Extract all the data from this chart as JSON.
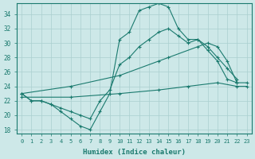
{
  "xlabel": "Humidex (Indice chaleur)",
  "xlim": [
    -0.5,
    23.5
  ],
  "ylim": [
    17.5,
    35.5
  ],
  "xticks": [
    0,
    1,
    2,
    3,
    4,
    5,
    6,
    7,
    8,
    9,
    10,
    11,
    12,
    13,
    14,
    15,
    16,
    17,
    18,
    19,
    20,
    21,
    22,
    23
  ],
  "yticks": [
    18,
    20,
    22,
    24,
    26,
    28,
    30,
    32,
    34
  ],
  "bg_color": "#cde8e8",
  "line_color": "#1a7a6e",
  "grid_color": "#aacfcf",
  "series": [
    {
      "x": [
        0,
        1,
        2,
        3,
        4,
        5,
        6,
        7,
        8,
        9,
        10,
        11,
        12,
        13,
        14,
        15,
        16,
        17,
        18,
        19,
        20,
        21,
        22
      ],
      "y": [
        23.0,
        22.0,
        22.0,
        21.5,
        20.5,
        19.5,
        18.5,
        18.0,
        20.5,
        23.0,
        30.5,
        31.5,
        34.5,
        35.0,
        35.5,
        35.0,
        32.0,
        30.5,
        30.5,
        29.0,
        27.5,
        25.0,
        24.5
      ]
    },
    {
      "x": [
        0,
        1,
        2,
        3,
        4,
        5,
        6,
        7,
        8,
        9,
        10,
        11,
        12,
        13,
        14,
        15,
        16,
        17,
        18,
        19,
        20,
        21,
        22
      ],
      "y": [
        23.0,
        22.0,
        22.0,
        21.5,
        21.0,
        20.5,
        20.0,
        19.5,
        22.0,
        23.5,
        27.0,
        28.0,
        29.5,
        30.5,
        31.5,
        32.0,
        31.0,
        30.0,
        30.5,
        29.5,
        28.0,
        26.5,
        25.0
      ]
    },
    {
      "x": [
        0,
        5,
        10,
        14,
        15,
        18,
        19,
        20,
        21,
        22,
        23
      ],
      "y": [
        23.0,
        24.0,
        25.5,
        27.5,
        28.0,
        29.5,
        30.0,
        29.5,
        27.5,
        24.5,
        24.5
      ]
    },
    {
      "x": [
        0,
        5,
        10,
        14,
        17,
        20,
        22,
        23
      ],
      "y": [
        22.5,
        22.5,
        23.0,
        23.5,
        24.0,
        24.5,
        24.0,
        24.0
      ]
    }
  ]
}
